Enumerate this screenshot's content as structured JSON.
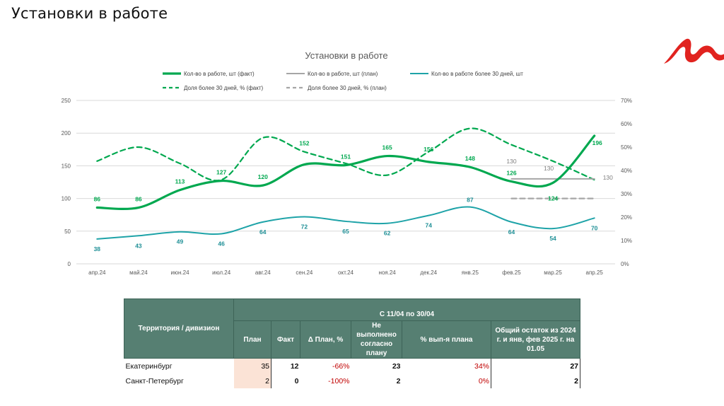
{
  "page": {
    "title": "Установки в работе"
  },
  "logo": {
    "icon": "brand-logo-icon",
    "color": "#e1231f"
  },
  "chart_data": {
    "type": "line",
    "title": "Установки в работе",
    "categories": [
      "апр.24",
      "май.24",
      "июн.24",
      "июл.24",
      "авг.24",
      "сен.24",
      "окт.24",
      "ноя.24",
      "дек.24",
      "янв.25",
      "фев.25",
      "мар.25",
      "апр.25"
    ],
    "y_left": {
      "ticks": [
        "0",
        "50",
        "100",
        "150",
        "200",
        "250"
      ],
      "range": [
        0,
        250
      ]
    },
    "y_right": {
      "ticks": [
        "0%",
        "10%",
        "20%",
        "30%",
        "40%",
        "50%",
        "60%",
        "70%"
      ],
      "range": [
        0,
        70
      ]
    },
    "grid": true,
    "legend_position": "top",
    "series": [
      {
        "name": "Кол-во в работе, шт (факт)",
        "axis": "left",
        "style": "solid-thick",
        "color": "#00a84f",
        "values": [
          86,
          86,
          113,
          127,
          120,
          152,
          151,
          165,
          156,
          148,
          126,
          124,
          196
        ],
        "labels": [
          "86",
          "86",
          "113",
          "127",
          "120",
          "152",
          "151",
          "165",
          "156",
          "148",
          "126",
          "124",
          "196"
        ]
      },
      {
        "name": "Кол-во в работе, шт (план)",
        "axis": "left",
        "style": "solid",
        "color": "#a6a6a6",
        "values": [
          null,
          null,
          null,
          null,
          null,
          null,
          null,
          null,
          null,
          null,
          130,
          130,
          130
        ],
        "labels": [
          "",
          "",
          "",
          "",
          "",
          "",
          "",
          "",
          "",
          "",
          "130",
          "130",
          "130"
        ]
      },
      {
        "name": "Кол-во в работе более 30 дней, шт",
        "axis": "left",
        "style": "solid",
        "color": "#1ea3a8",
        "values": [
          38,
          43,
          49,
          46,
          64,
          72,
          65,
          62,
          74,
          87,
          64,
          54,
          70
        ],
        "labels": [
          "38",
          "43",
          "49",
          "46",
          "64",
          "72",
          "65",
          "62",
          "74",
          "87",
          "64",
          "54",
          "70"
        ]
      },
      {
        "name": "Доля более 30 дней, % (факт)",
        "axis": "right",
        "style": "dashed",
        "color": "#00a84f",
        "values": [
          44,
          50,
          43,
          36,
          54,
          48,
          43,
          38,
          48,
          58,
          51,
          44,
          36
        ]
      },
      {
        "name": "Доля более 30 дней, % (план)",
        "axis": "right",
        "style": "dashed",
        "color": "#a6a6a6",
        "values": [
          null,
          null,
          null,
          null,
          null,
          null,
          null,
          null,
          null,
          null,
          28,
          28,
          28
        ]
      }
    ]
  },
  "table": {
    "headers": {
      "territory": "Территория / дивизион",
      "period": "С 11/04 по 30/04",
      "plan": "План",
      "fact": "Факт",
      "delta": "Δ План, %",
      "not_done": "Не выполнено согласно плану",
      "pct_done": "% вып-я плана",
      "remainder": "Общий остаток из 2024 г. и янв, фев 2025 г. на 01.05"
    },
    "rows": [
      {
        "territory": "Екатеринбург",
        "plan": "35",
        "fact": "12",
        "delta": "-66%",
        "not_done": "23",
        "pct_done": "34%",
        "remainder": "27"
      },
      {
        "territory": "Санкт-Петербург",
        "plan": "2",
        "fact": "0",
        "delta": "-100%",
        "not_done": "2",
        "pct_done": "0%",
        "remainder": "2"
      }
    ]
  }
}
